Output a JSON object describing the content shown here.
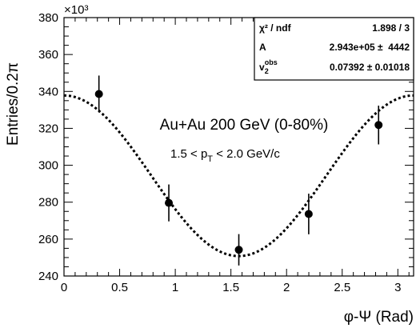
{
  "chart_data": {
    "type": "scatter",
    "xlabel": "φ-Ψ (Rad)",
    "ylabel": "Entries/0.2π",
    "y_multiplier": "×10³",
    "xlim": [
      0,
      3.1416
    ],
    "ylim": [
      240,
      380
    ],
    "x_ticks": [
      "0",
      "0.5",
      "1",
      "1.5",
      "2",
      "2.5",
      "3"
    ],
    "x_tick_values": [
      0,
      0.5,
      1,
      1.5,
      2,
      2.5,
      3
    ],
    "y_ticks": [
      "240",
      "260",
      "280",
      "300",
      "320",
      "340",
      "360",
      "380"
    ],
    "y_tick_values": [
      240,
      260,
      280,
      300,
      320,
      340,
      360,
      380
    ],
    "grid": false,
    "series": [
      {
        "points": [
          {
            "x": 0.314,
            "y": 338.6,
            "err": 10
          },
          {
            "x": 0.942,
            "y": 279.6,
            "err": 10
          },
          {
            "x": 1.571,
            "y": 254.2,
            "err": 8.5
          },
          {
            "x": 2.199,
            "y": 273.6,
            "err": 11
          },
          {
            "x": 2.827,
            "y": 321.8,
            "err": 10.5
          }
        ]
      }
    ],
    "fit": {
      "A": 294.3,
      "v2": 0.07392
    },
    "annotations": [
      {
        "id": "system",
        "text": "Au+Au 200 GeV (0-80%)"
      },
      {
        "id": "pt_prefix",
        "text": "1.5 < p"
      },
      {
        "id": "pt_sub",
        "text": "T"
      },
      {
        "id": "pt_suffix",
        "text": " < 2.0 GeV/c"
      }
    ],
    "stats_box": {
      "rows": [
        {
          "label": "χ² / ndf",
          "value": "1.898 / 3"
        },
        {
          "label": "A",
          "value": "2.943e+05 ±  4442"
        },
        {
          "label_main": "v",
          "label_sub": "2",
          "label_sup": "obs",
          "value": "0.07392 ± 0.01018"
        }
      ]
    }
  },
  "colors": {
    "foreground": "#000000",
    "background": "#ffffff"
  }
}
